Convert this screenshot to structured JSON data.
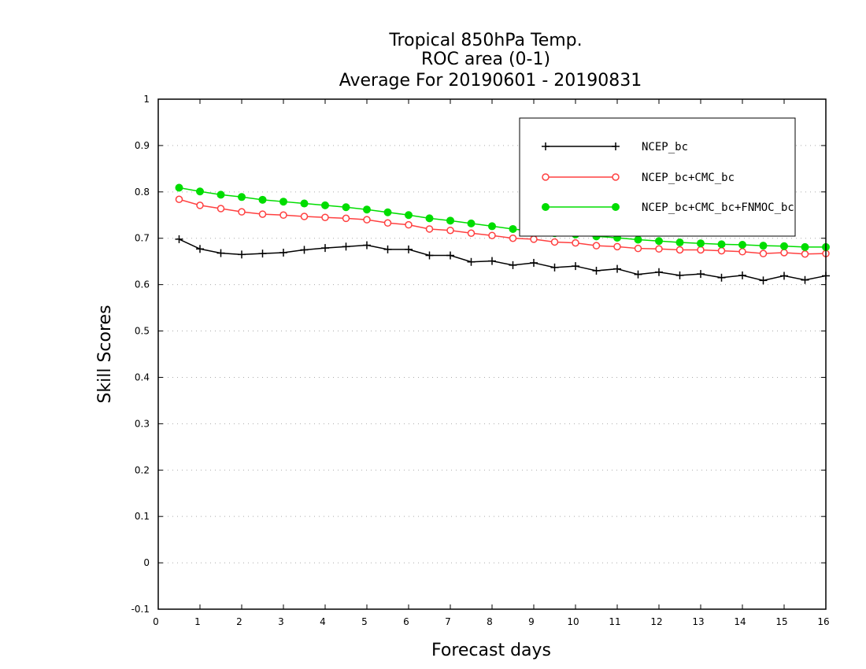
{
  "chart_data": {
    "type": "line",
    "title": [
      "Tropical 850hPa Temp.",
      "ROC area (0-1)",
      "Average For 20190601 - 20190831"
    ],
    "xlabel": "Forecast days",
    "ylabel": "Skill Scores",
    "xlim": [
      0,
      16
    ],
    "ylim": [
      -0.1,
      1
    ],
    "x_ticks": [
      "0",
      "1",
      "2",
      "3",
      "4",
      "5",
      "6",
      "7",
      "8",
      "9",
      "10",
      "11",
      "12",
      "13",
      "14",
      "15",
      "16"
    ],
    "y_ticks": [
      "-0.1",
      "0",
      "0.1",
      "0.2",
      "0.3",
      "0.4",
      "0.5",
      "0.6",
      "0.7",
      "0.8",
      "0.9",
      "1"
    ],
    "grid": true,
    "legend_position": "top-right",
    "x": [
      0.5,
      1,
      1.5,
      2,
      2.5,
      3,
      3.5,
      4,
      4.5,
      5,
      5.5,
      6,
      6.5,
      7,
      7.5,
      8,
      8.5,
      9,
      9.5,
      10,
      10.5,
      11,
      11.5,
      12,
      12.5,
      13,
      13.5,
      14,
      14.5,
      15,
      15.5,
      16
    ],
    "series": [
      {
        "name": "NCEP_bc",
        "color": "#000000",
        "marker": "plus",
        "values": [
          0.698,
          0.677,
          0.668,
          0.665,
          0.667,
          0.669,
          0.675,
          0.679,
          0.682,
          0.685,
          0.676,
          0.676,
          0.663,
          0.663,
          0.649,
          0.651,
          0.642,
          0.647,
          0.637,
          0.64,
          0.63,
          0.634,
          0.622,
          0.627,
          0.62,
          0.623,
          0.615,
          0.62,
          0.609,
          0.619,
          0.61,
          0.619
        ]
      },
      {
        "name": "NCEP_bc+CMC_bc",
        "color": "#ff4040",
        "marker": "open-circle",
        "values": [
          0.784,
          0.771,
          0.764,
          0.757,
          0.752,
          0.75,
          0.747,
          0.745,
          0.743,
          0.74,
          0.733,
          0.729,
          0.72,
          0.717,
          0.711,
          0.706,
          0.7,
          0.698,
          0.692,
          0.69,
          0.684,
          0.682,
          0.678,
          0.677,
          0.675,
          0.675,
          0.673,
          0.671,
          0.667,
          0.669,
          0.666,
          0.667
        ]
      },
      {
        "name": "NCEP_bc+CMC_bc+FNMOC_bc",
        "color": "#00dd00",
        "marker": "filled-circle",
        "values": [
          0.809,
          0.801,
          0.794,
          0.789,
          0.783,
          0.779,
          0.775,
          0.771,
          0.767,
          0.762,
          0.756,
          0.75,
          0.743,
          0.738,
          0.732,
          0.726,
          0.72,
          0.715,
          0.711,
          0.708,
          0.704,
          0.701,
          0.697,
          0.694,
          0.691,
          0.689,
          0.687,
          0.686,
          0.684,
          0.683,
          0.681,
          0.681
        ]
      }
    ]
  }
}
